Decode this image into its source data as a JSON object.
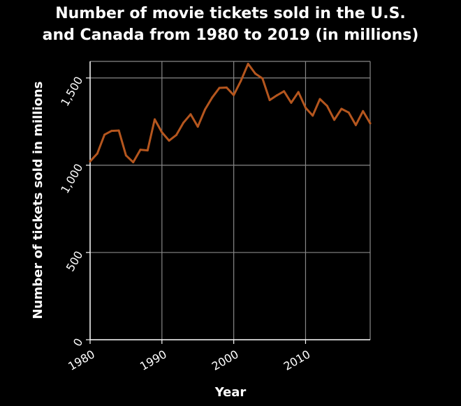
{
  "chart_data": {
    "type": "line",
    "title_lines": [
      "Number of movie tickets sold in the U.S.",
      "and Canada from 1980 to 2019 (in millions)"
    ],
    "xlabel": "Year",
    "ylabel": "Number of tickets sold in millions",
    "xlim": [
      1980,
      2019
    ],
    "ylim": [
      0,
      1500
    ],
    "x_ticks": [
      1980,
      1990,
      2000,
      2010
    ],
    "x_tick_labels": [
      "1980",
      "1990",
      "2000",
      "2010"
    ],
    "y_ticks": [
      0,
      500,
      1000,
      1500
    ],
    "y_tick_labels": [
      "0",
      "500",
      "1,000",
      "1,500"
    ],
    "grid": true,
    "background": "#000000",
    "grid_color": "#888888",
    "text_color": "#ffffff",
    "line_color": "#b5561e",
    "x": [
      1980,
      1981,
      1982,
      1983,
      1984,
      1985,
      1986,
      1987,
      1988,
      1989,
      1990,
      1991,
      1992,
      1993,
      1994,
      1995,
      1996,
      1997,
      1998,
      1999,
      2000,
      2001,
      2002,
      2003,
      2004,
      2005,
      2006,
      2007,
      2008,
      2009,
      2010,
      2011,
      2012,
      2013,
      2014,
      2015,
      2016,
      2017,
      2018,
      2019
    ],
    "values": [
      1022,
      1067,
      1175,
      1197,
      1199,
      1056,
      1017,
      1089,
      1085,
      1263,
      1189,
      1141,
      1173,
      1244,
      1292,
      1221,
      1319,
      1388,
      1443,
      1445,
      1402,
      1484,
      1581,
      1525,
      1497,
      1373,
      1400,
      1424,
      1358,
      1419,
      1329,
      1284,
      1379,
      1340,
      1260,
      1323,
      1302,
      1230,
      1310,
      1240
    ]
  }
}
